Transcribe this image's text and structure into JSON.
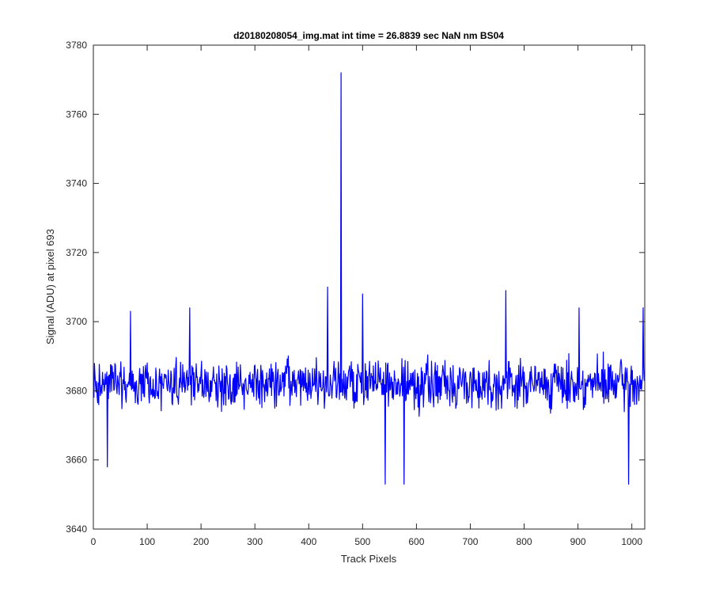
{
  "chart_data": {
    "type": "line",
    "title": "d20180208054_img.mat int time = 26.8839 sec  NaN nm BS04",
    "xlabel": "Track Pixels",
    "ylabel": "Signal (ADU) at pixel 693",
    "xlim": [
      0,
      1024
    ],
    "ylim": [
      3640,
      3780
    ],
    "xticks": [
      0,
      100,
      200,
      300,
      400,
      500,
      600,
      700,
      800,
      900,
      1000
    ],
    "yticks": [
      3640,
      3660,
      3680,
      3700,
      3720,
      3740,
      3760,
      3780
    ],
    "grid": false,
    "legend": "none",
    "series": [
      {
        "color": "#0000ff",
        "num_points": 1024,
        "baseline": 3682,
        "noise_amplitude": 10,
        "features": [
          {
            "x": 459,
            "y": 3772
          },
          {
            "x": 434,
            "y": 3710
          },
          {
            "x": 25,
            "y": 3658
          },
          {
            "x": 541,
            "y": 3653
          },
          {
            "x": 576,
            "y": 3653
          },
          {
            "x": 993,
            "y": 3653
          },
          {
            "x": 1020,
            "y": 3704
          },
          {
            "x": 68,
            "y": 3703
          },
          {
            "x": 178,
            "y": 3704
          },
          {
            "x": 765,
            "y": 3709
          },
          {
            "x": 901,
            "y": 3704
          },
          {
            "x": 499,
            "y": 3708
          }
        ]
      }
    ]
  }
}
